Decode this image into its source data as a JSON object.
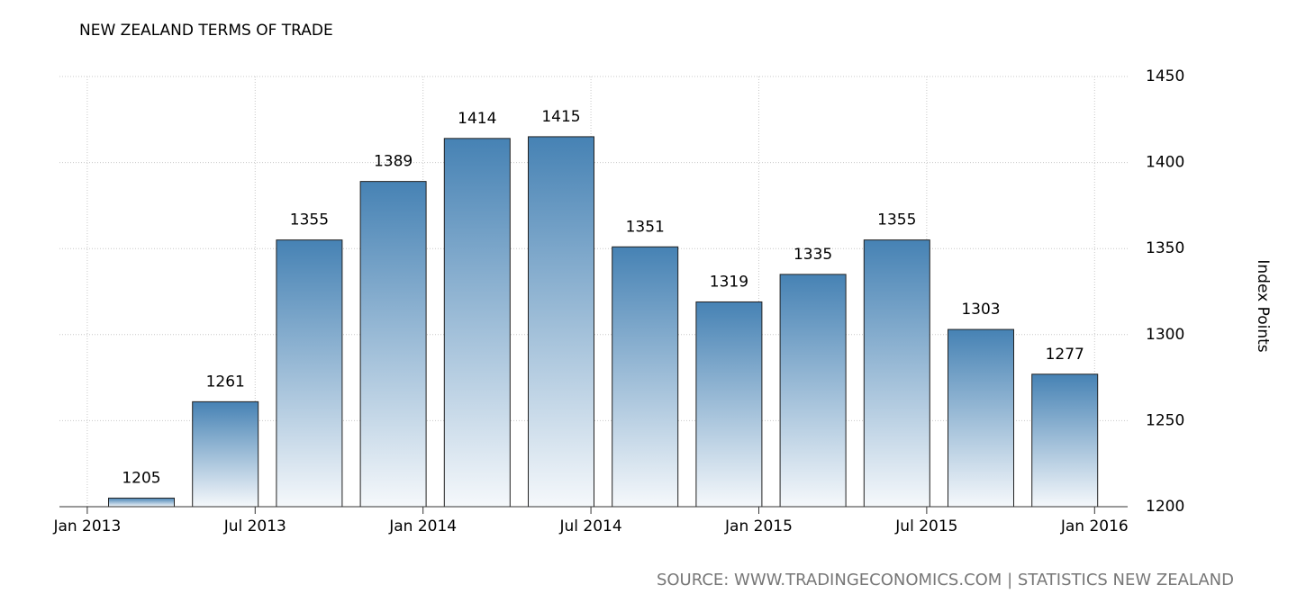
{
  "chart_data": {
    "type": "bar",
    "title": "NEW ZEALAND TERMS OF TRADE",
    "y_axis_label": "Index Points",
    "source": "SOURCE: WWW.TRADINGECONOMICS.COM | STATISTICS NEW ZEALAND",
    "categories": [
      null,
      null,
      null,
      null,
      null,
      null,
      null,
      null,
      null,
      null,
      null,
      null
    ],
    "values": [
      1205,
      1261,
      1355,
      1389,
      1414,
      1415,
      1351,
      1319,
      1335,
      1355,
      1303,
      1277
    ],
    "xtick_labels": [
      "Jan 2013",
      "Jul 2013",
      "Jan 2014",
      "Jul 2014",
      "Jan 2015",
      "Jul 2015",
      "Jan 2016"
    ],
    "color": "#4682b4",
    "ylim": [
      1200,
      1450
    ],
    "yticks": [
      1200,
      1250,
      1300,
      1350,
      1400,
      1450
    ],
    "grid": true
  }
}
